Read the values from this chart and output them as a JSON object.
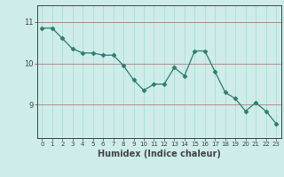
{
  "x": [
    0,
    1,
    2,
    3,
    4,
    5,
    6,
    7,
    8,
    9,
    10,
    11,
    12,
    13,
    14,
    15,
    16,
    17,
    18,
    19,
    20,
    21,
    22,
    23
  ],
  "y": [
    10.85,
    10.85,
    10.6,
    10.35,
    10.25,
    10.25,
    10.2,
    10.2,
    9.95,
    9.6,
    9.35,
    9.5,
    9.5,
    9.9,
    9.7,
    10.3,
    10.3,
    9.8,
    9.3,
    9.15,
    8.85,
    9.05,
    8.85,
    8.55
  ],
  "line_color": "#2e7d6e",
  "marker": "D",
  "marker_size": 2.5,
  "bg_color": "#cdecea",
  "vgrid_color": "#aad8d3",
  "hgrid_color": "#c87070",
  "axis_color": "#444444",
  "xlabel": "Humidex (Indice chaleur)",
  "xlabel_fontsize": 7,
  "yticks": [
    9,
    10,
    11
  ],
  "xticks": [
    0,
    1,
    2,
    3,
    4,
    5,
    6,
    7,
    8,
    9,
    10,
    11,
    12,
    13,
    14,
    15,
    16,
    17,
    18,
    19,
    20,
    21,
    22,
    23
  ],
  "ylim": [
    8.2,
    11.4
  ],
  "xlim": [
    -0.5,
    23.5
  ]
}
